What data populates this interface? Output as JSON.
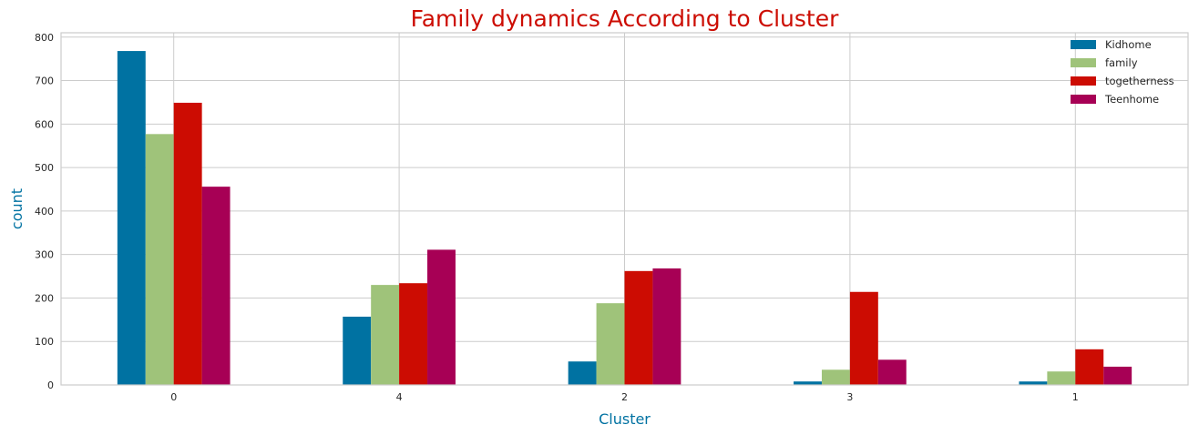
{
  "chart_data": {
    "type": "bar",
    "title": "Family dynamics According to Cluster",
    "xlabel": "Cluster",
    "ylabel": "count",
    "categories": [
      "0",
      "4",
      "2",
      "3",
      "1"
    ],
    "series": [
      {
        "name": "Kidhome",
        "color": "#0072a2",
        "values": [
          768,
          157,
          54,
          8,
          8
        ]
      },
      {
        "name": "family",
        "color": "#9fc37a",
        "values": [
          577,
          230,
          188,
          35,
          31
        ]
      },
      {
        "name": "togetherness",
        "color": "#cc0c02",
        "values": [
          649,
          234,
          262,
          214,
          82
        ]
      },
      {
        "name": "Teenhome",
        "color": "#a70055",
        "values": [
          456,
          311,
          268,
          58,
          42
        ]
      }
    ],
    "ylim": [
      0,
      810
    ],
    "yticks": [
      0,
      100,
      200,
      300,
      400,
      500,
      600,
      700,
      800
    ],
    "grid": true,
    "legend_position": "top-right",
    "title_color": "#cc0c02",
    "axis_label_color": "#0072a2"
  }
}
